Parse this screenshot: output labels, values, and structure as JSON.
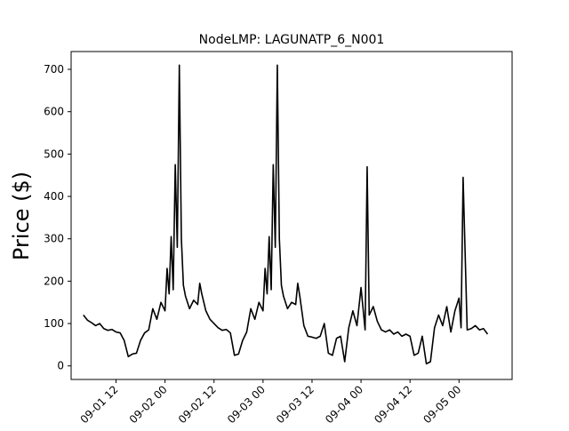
{
  "chart_data": {
    "type": "line",
    "title": "NodeLMP: LAGUNATP_6_N001",
    "xlabel": "",
    "ylabel": "Price ($)",
    "x_axis": "datetime",
    "xlim": [
      "2024-09-01 01:00",
      "2024-09-05 13:00"
    ],
    "ylim": [
      -32,
      742
    ],
    "x_ticks": [
      {
        "x": "2024-09-01 12:00",
        "label": "09-01 12"
      },
      {
        "x": "2024-09-02 00:00",
        "label": "09-02 00"
      },
      {
        "x": "2024-09-02 12:00",
        "label": "09-02 12"
      },
      {
        "x": "2024-09-03 00:00",
        "label": "09-03 00"
      },
      {
        "x": "2024-09-03 12:00",
        "label": "09-03 12"
      },
      {
        "x": "2024-09-04 00:00",
        "label": "09-04 00"
      },
      {
        "x": "2024-09-04 12:00",
        "label": "09-04 12"
      },
      {
        "x": "2024-09-05 00:00",
        "label": "09-05 00"
      }
    ],
    "y_ticks": [
      0,
      100,
      200,
      300,
      400,
      500,
      600,
      700
    ],
    "grid": false,
    "series": [
      {
        "color": "#000000",
        "points": [
          [
            "2024-09-01 04:00",
            120
          ],
          [
            "2024-09-01 05:00",
            108
          ],
          [
            "2024-09-01 06:00",
            102
          ],
          [
            "2024-09-01 07:00",
            95
          ],
          [
            "2024-09-01 08:00",
            100
          ],
          [
            "2024-09-01 09:00",
            88
          ],
          [
            "2024-09-01 10:00",
            84
          ],
          [
            "2024-09-01 11:00",
            86
          ],
          [
            "2024-09-01 12:00",
            80
          ],
          [
            "2024-09-01 13:00",
            78
          ],
          [
            "2024-09-01 14:00",
            60
          ],
          [
            "2024-09-01 15:00",
            22
          ],
          [
            "2024-09-01 16:00",
            28
          ],
          [
            "2024-09-01 17:00",
            30
          ],
          [
            "2024-09-01 18:00",
            60
          ],
          [
            "2024-09-01 19:00",
            78
          ],
          [
            "2024-09-01 20:00",
            85
          ],
          [
            "2024-09-01 21:00",
            135
          ],
          [
            "2024-09-01 22:00",
            110
          ],
          [
            "2024-09-01 23:00",
            150
          ],
          [
            "2024-09-02 00:00",
            130
          ],
          [
            "2024-09-02 00:30",
            230
          ],
          [
            "2024-09-02 01:00",
            170
          ],
          [
            "2024-09-02 01:30",
            305
          ],
          [
            "2024-09-02 02:00",
            180
          ],
          [
            "2024-09-02 02:30",
            475
          ],
          [
            "2024-09-02 03:00",
            280
          ],
          [
            "2024-09-02 03:30",
            710
          ],
          [
            "2024-09-02 04:00",
            300
          ],
          [
            "2024-09-02 04:30",
            190
          ],
          [
            "2024-09-02 05:00",
            165
          ],
          [
            "2024-09-02 06:00",
            135
          ],
          [
            "2024-09-02 07:00",
            155
          ],
          [
            "2024-09-02 08:00",
            145
          ],
          [
            "2024-09-02 08:30",
            195
          ],
          [
            "2024-09-02 09:00",
            170
          ],
          [
            "2024-09-02 10:00",
            130
          ],
          [
            "2024-09-02 11:00",
            110
          ],
          [
            "2024-09-02 12:00",
            100
          ],
          [
            "2024-09-02 13:00",
            90
          ],
          [
            "2024-09-02 14:00",
            84
          ],
          [
            "2024-09-02 15:00",
            86
          ],
          [
            "2024-09-02 16:00",
            78
          ],
          [
            "2024-09-02 17:00",
            25
          ],
          [
            "2024-09-02 18:00",
            28
          ],
          [
            "2024-09-02 19:00",
            60
          ],
          [
            "2024-09-02 20:00",
            80
          ],
          [
            "2024-09-02 21:00",
            135
          ],
          [
            "2024-09-02 22:00",
            110
          ],
          [
            "2024-09-02 23:00",
            150
          ],
          [
            "2024-09-03 00:00",
            130
          ],
          [
            "2024-09-03 00:30",
            230
          ],
          [
            "2024-09-03 01:00",
            170
          ],
          [
            "2024-09-03 01:30",
            305
          ],
          [
            "2024-09-03 02:00",
            180
          ],
          [
            "2024-09-03 02:30",
            475
          ],
          [
            "2024-09-03 03:00",
            280
          ],
          [
            "2024-09-03 03:30",
            710
          ],
          [
            "2024-09-03 04:00",
            300
          ],
          [
            "2024-09-03 04:30",
            190
          ],
          [
            "2024-09-03 05:00",
            165
          ],
          [
            "2024-09-03 06:00",
            135
          ],
          [
            "2024-09-03 07:00",
            150
          ],
          [
            "2024-09-03 08:00",
            145
          ],
          [
            "2024-09-03 08:30",
            195
          ],
          [
            "2024-09-03 09:00",
            165
          ],
          [
            "2024-09-03 10:00",
            95
          ],
          [
            "2024-09-03 11:00",
            70
          ],
          [
            "2024-09-03 12:00",
            68
          ],
          [
            "2024-09-03 13:00",
            65
          ],
          [
            "2024-09-03 14:00",
            70
          ],
          [
            "2024-09-03 15:00",
            100
          ],
          [
            "2024-09-03 16:00",
            30
          ],
          [
            "2024-09-03 17:00",
            25
          ],
          [
            "2024-09-03 18:00",
            65
          ],
          [
            "2024-09-03 19:00",
            70
          ],
          [
            "2024-09-03 20:00",
            10
          ],
          [
            "2024-09-03 21:00",
            90
          ],
          [
            "2024-09-03 22:00",
            130
          ],
          [
            "2024-09-03 23:00",
            95
          ],
          [
            "2024-09-04 00:00",
            185
          ],
          [
            "2024-09-04 01:00",
            85
          ],
          [
            "2024-09-04 01:30",
            470
          ],
          [
            "2024-09-04 02:00",
            120
          ],
          [
            "2024-09-04 03:00",
            140
          ],
          [
            "2024-09-04 04:00",
            105
          ],
          [
            "2024-09-04 05:00",
            85
          ],
          [
            "2024-09-04 06:00",
            80
          ],
          [
            "2024-09-04 07:00",
            85
          ],
          [
            "2024-09-04 08:00",
            75
          ],
          [
            "2024-09-04 09:00",
            80
          ],
          [
            "2024-09-04 10:00",
            70
          ],
          [
            "2024-09-04 11:00",
            75
          ],
          [
            "2024-09-04 12:00",
            70
          ],
          [
            "2024-09-04 13:00",
            25
          ],
          [
            "2024-09-04 14:00",
            30
          ],
          [
            "2024-09-04 15:00",
            70
          ],
          [
            "2024-09-04 16:00",
            5
          ],
          [
            "2024-09-04 17:00",
            10
          ],
          [
            "2024-09-04 18:00",
            90
          ],
          [
            "2024-09-04 19:00",
            120
          ],
          [
            "2024-09-04 20:00",
            95
          ],
          [
            "2024-09-04 21:00",
            140
          ],
          [
            "2024-09-04 22:00",
            80
          ],
          [
            "2024-09-04 23:00",
            130
          ],
          [
            "2024-09-05 00:00",
            160
          ],
          [
            "2024-09-05 00:30",
            90
          ],
          [
            "2024-09-05 01:00",
            445
          ],
          [
            "2024-09-05 02:00",
            85
          ],
          [
            "2024-09-05 03:00",
            88
          ],
          [
            "2024-09-05 04:00",
            95
          ],
          [
            "2024-09-05 05:00",
            85
          ],
          [
            "2024-09-05 06:00",
            88
          ],
          [
            "2024-09-05 07:00",
            75
          ]
        ]
      }
    ]
  }
}
